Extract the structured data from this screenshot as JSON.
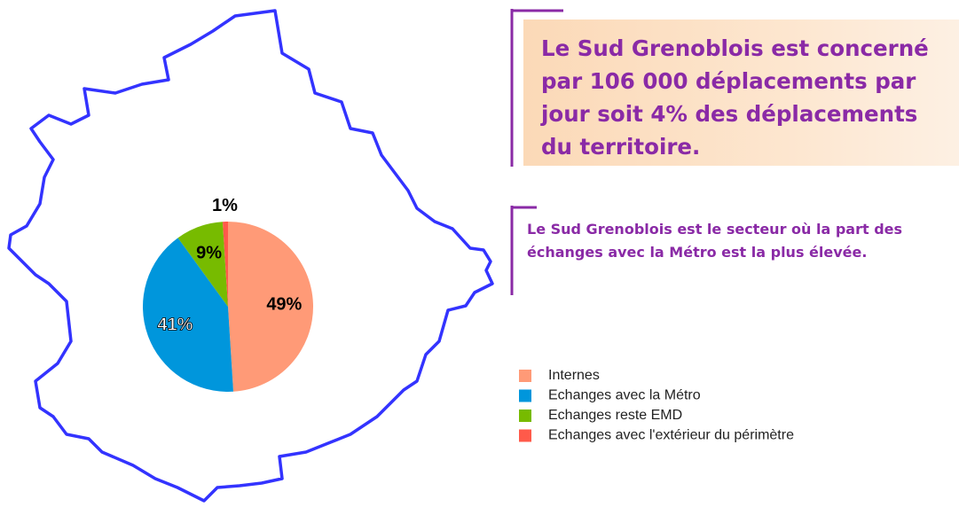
{
  "chart_data": {
    "type": "pie",
    "categories": [
      "Internes",
      "Echanges avec la Métro",
      "Echanges reste EMD",
      "Echanges avec l'extérieur du périmètre"
    ],
    "values": [
      49,
      41,
      9,
      1
    ],
    "value_labels": [
      "49%",
      "41%",
      "9%",
      "1%"
    ],
    "colors": [
      "#ff9a77",
      "#0096dc",
      "#77bb00",
      "#ff5a4a"
    ],
    "annotations": [
      "Le Sud Grenoblois est concerné par 106 000 déplacements par jour soit 4% des déplacements du territoire.",
      "Le Sud Grenoblois est le secteur où la part des échanges avec la Métro est la plus élevée."
    ]
  }
}
